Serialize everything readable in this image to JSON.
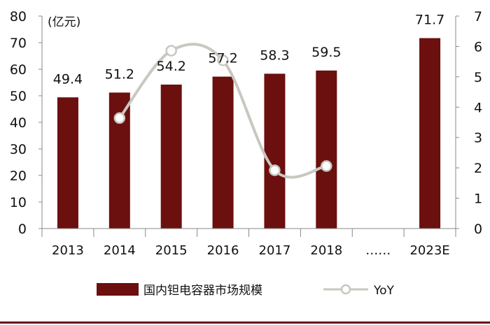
{
  "chart_data": {
    "type": "bar",
    "categories": [
      "2013",
      "2014",
      "2015",
      "2016",
      "2017",
      "2018",
      "……",
      "2023E"
    ],
    "unit_label": "(亿元)",
    "y_left_ticks": [
      "0",
      "10",
      "20",
      "30",
      "40",
      "50",
      "60",
      "70",
      "80"
    ],
    "y_left_range": [
      0,
      80
    ],
    "y_right_ticks": [
      "0",
      "1",
      "2",
      "3",
      "4",
      "5",
      "6",
      "7"
    ],
    "y_right_range": [
      0,
      7
    ],
    "grid": false,
    "legend_position": "bottom",
    "series": [
      {
        "name": "国内钽电容器市场规模",
        "type": "bar",
        "axis": "left",
        "color": "#6b0f0f",
        "values": [
          49.4,
          51.2,
          54.2,
          57.2,
          58.3,
          59.5,
          null,
          71.7
        ],
        "labels": [
          "49.4",
          "51.2",
          "54.2",
          "57.2",
          "58.3",
          "59.5",
          "",
          "71.7"
        ]
      },
      {
        "name": "YoY",
        "type": "line",
        "axis": "right",
        "color": "#c8c8c0",
        "values": [
          null,
          3.64,
          5.86,
          5.54,
          1.92,
          2.06,
          null,
          null
        ]
      }
    ]
  }
}
